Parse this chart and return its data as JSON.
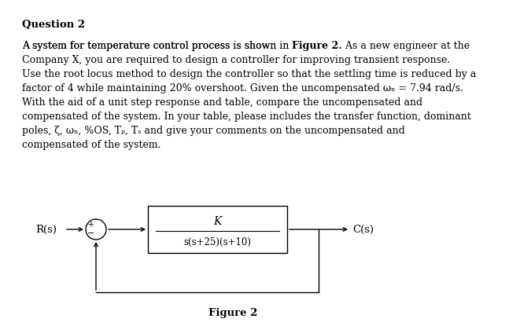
{
  "title": "Question 2",
  "line1_pre": "A system for temperature control process is shown in ",
  "line1_bold": "Figure 2.",
  "line1_post": " As a new engineer at the",
  "line2": "Company X, you are required to design a controller for improving transient response.",
  "line3": "Use the root locus method to design the controller so that the settling time is reduced by a",
  "line4": "factor of 4 while maintaining 20% overshoot. Given the uncompensated ωₙ = 7.94 rad/s.",
  "line5": "With the aid of a unit step response and table, compare the uncompensated and",
  "line6": "compensated of the system. In your table, please includes the transfer function, dominant",
  "line7": "poles, ζ, ωₙ, %OS, Tₚ, Tₛ and give your comments on the uncompensated and",
  "line8": "compensated of the system.",
  "figure_label": "Figure 2",
  "block_numerator": "K",
  "block_denominator": "s(s+25)(s+10)",
  "label_input": "R(s)",
  "label_output": "C(s)",
  "bg_color": "#ffffff",
  "text_color": "#000000",
  "font_size_title": 9.5,
  "font_size_body": 9.0,
  "font_size_diagram": 9.5
}
